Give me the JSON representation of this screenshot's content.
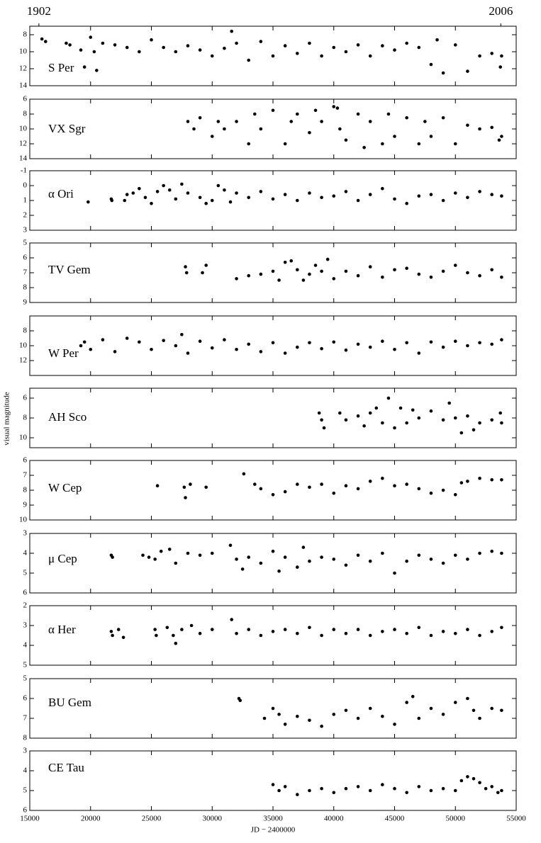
{
  "chart_data": {
    "type": "scatter",
    "xlabel": "JD − 2400000",
    "ylabel": "visual magnitude",
    "color": "#000000",
    "xlim": [
      15000,
      55000
    ],
    "xticks": [
      15000,
      20000,
      25000,
      30000,
      35000,
      40000,
      45000,
      50000,
      55000
    ],
    "top_ticks": [
      {
        "value": 15751,
        "label": "1902"
      },
      {
        "value": 53736,
        "label": "2006"
      }
    ],
    "panels": [
      {
        "name": "S Per",
        "ylim": [
          14,
          7
        ],
        "yticks": [
          8,
          10,
          12,
          14
        ],
        "x": [
          16000,
          16300,
          18000,
          18300,
          19200,
          19500,
          20000,
          20300,
          20500,
          21000,
          22000,
          23000,
          24000,
          25000,
          26000,
          27000,
          28000,
          29000,
          30000,
          31000,
          31600,
          32000,
          33000,
          34000,
          35000,
          36000,
          37000,
          38000,
          39000,
          40000,
          41000,
          42000,
          43000,
          44000,
          45000,
          46000,
          47000,
          48000,
          48500,
          49000,
          50000,
          51000,
          52000,
          53000,
          53700,
          53800
        ],
        "y": [
          8.5,
          8.8,
          9,
          9.2,
          9.8,
          11.8,
          8.3,
          10,
          12.2,
          9,
          9.2,
          9.5,
          10,
          8.6,
          9.5,
          10,
          9.3,
          9.8,
          10.5,
          9.6,
          7.6,
          9,
          11,
          8.8,
          10.5,
          9.3,
          10.2,
          9,
          10.5,
          9.5,
          10,
          9.2,
          10.5,
          9.3,
          9.8,
          9,
          9.5,
          11.5,
          8.6,
          12.5,
          9.2,
          12.3,
          10.5,
          10.2,
          11.8,
          10.5
        ]
      },
      {
        "name": "VX Sgr",
        "ylim": [
          14,
          6
        ],
        "yticks": [
          6,
          8,
          10,
          12,
          14
        ],
        "x": [
          28000,
          28500,
          29000,
          30000,
          30500,
          31000,
          32000,
          33000,
          33500,
          34000,
          35000,
          36000,
          36500,
          37000,
          38000,
          38500,
          39000,
          40000,
          40300,
          40500,
          41000,
          42000,
          42500,
          43000,
          44000,
          44500,
          45000,
          46000,
          47000,
          47500,
          48000,
          49000,
          50000,
          51000,
          52000,
          53000,
          53600,
          53800
        ],
        "y": [
          9,
          10,
          8.5,
          11,
          9,
          10,
          9,
          12,
          8,
          10,
          7.5,
          12,
          9,
          8,
          10.5,
          7.5,
          9,
          7,
          7.2,
          10,
          11.5,
          8,
          12.5,
          9,
          12,
          8,
          11,
          8.5,
          12,
          9,
          11,
          8.5,
          12,
          9.5,
          10,
          9.8,
          11.5,
          11
        ]
      },
      {
        "name": "α Ori",
        "ylim": [
          3,
          -1
        ],
        "yticks": [
          -1,
          0,
          1,
          2,
          3
        ],
        "x": [
          19800,
          21700,
          21750,
          22800,
          23000,
          23500,
          24000,
          24500,
          25000,
          25500,
          26000,
          26500,
          27000,
          27500,
          28000,
          29000,
          29500,
          30000,
          30500,
          31000,
          31500,
          32000,
          33000,
          34000,
          35000,
          36000,
          37000,
          38000,
          39000,
          40000,
          41000,
          42000,
          43000,
          44000,
          45000,
          46000,
          47000,
          48000,
          49000,
          50000,
          51000,
          52000,
          53000,
          53800
        ],
        "y": [
          1.1,
          0.9,
          1,
          1,
          0.6,
          0.5,
          0.2,
          0.8,
          1.2,
          0.4,
          0,
          0.3,
          0.9,
          -0.1,
          0.5,
          0.8,
          1.2,
          1,
          0,
          0.3,
          1.1,
          0.5,
          0.8,
          0.4,
          0.9,
          0.6,
          1,
          0.5,
          0.8,
          0.7,
          0.4,
          1,
          0.6,
          0.2,
          0.9,
          1.2,
          0.7,
          0.6,
          1,
          0.5,
          0.8,
          0.4,
          0.6,
          0.7
        ]
      },
      {
        "name": "TV Gem",
        "ylim": [
          9,
          5
        ],
        "yticks": [
          5,
          6,
          7,
          8,
          9
        ],
        "x": [
          27800,
          27900,
          29200,
          29500,
          32000,
          33000,
          34000,
          35000,
          35500,
          36000,
          36500,
          37000,
          37500,
          38000,
          38500,
          39000,
          39500,
          40000,
          41000,
          42000,
          43000,
          44000,
          45000,
          46000,
          47000,
          48000,
          49000,
          50000,
          51000,
          52000,
          53000,
          53800
        ],
        "y": [
          6.6,
          7,
          7,
          6.5,
          7.4,
          7.2,
          7.1,
          6.9,
          7.5,
          6.3,
          6.2,
          6.8,
          7.5,
          7.1,
          6.5,
          6.9,
          6.1,
          7.4,
          6.9,
          7.2,
          6.6,
          7.3,
          6.8,
          6.7,
          7.1,
          7.3,
          6.9,
          6.5,
          7,
          7.2,
          6.8,
          7.3
        ]
      },
      {
        "name": "W Per",
        "ylim": [
          14,
          6
        ],
        "yticks": [
          8,
          10,
          12
        ],
        "x": [
          19200,
          19500,
          20000,
          21000,
          22000,
          23000,
          24000,
          25000,
          26000,
          27000,
          27500,
          28000,
          29000,
          30000,
          31000,
          32000,
          33000,
          34000,
          35000,
          36000,
          37000,
          38000,
          39000,
          40000,
          41000,
          42000,
          43000,
          44000,
          45000,
          46000,
          47000,
          48000,
          49000,
          50000,
          51000,
          52000,
          53000,
          53800
        ],
        "y": [
          10,
          9.5,
          10.5,
          9.2,
          10.8,
          9,
          9.5,
          10.5,
          9.3,
          10,
          8.5,
          11,
          9.4,
          10.3,
          9.2,
          10.5,
          9.8,
          10.8,
          9.6,
          11,
          10.2,
          9.6,
          10.4,
          9.5,
          10.6,
          9.8,
          10.2,
          9.4,
          10.5,
          9.6,
          11,
          9.5,
          10.2,
          9.4,
          10,
          9.6,
          9.8,
          9.2
        ]
      },
      {
        "name": "AH Sco",
        "ylim": [
          11,
          5
        ],
        "yticks": [
          6,
          8,
          10
        ],
        "x": [
          38800,
          39000,
          39200,
          40500,
          41000,
          42000,
          42500,
          43000,
          43500,
          44000,
          44500,
          45000,
          45500,
          46000,
          46500,
          47000,
          48000,
          49000,
          49500,
          50000,
          50500,
          51000,
          51500,
          52000,
          53000,
          53700,
          53800
        ],
        "y": [
          7.5,
          8.2,
          9,
          7.5,
          8.2,
          7.8,
          8.8,
          7.5,
          7,
          8.5,
          6,
          9,
          7,
          8.5,
          7.2,
          8,
          7.3,
          8.2,
          6.5,
          8,
          9.5,
          7.8,
          9.2,
          8.5,
          8.2,
          7.5,
          8.5
        ]
      },
      {
        "name": "W Cep",
        "ylim": [
          10,
          6
        ],
        "yticks": [
          6,
          7,
          8,
          9,
          10
        ],
        "x": [
          25500,
          27700,
          27800,
          28200,
          29500,
          32600,
          33500,
          34000,
          35000,
          36000,
          37000,
          38000,
          39000,
          40000,
          41000,
          42000,
          43000,
          44000,
          45000,
          46000,
          47000,
          48000,
          49000,
          50000,
          50500,
          51000,
          52000,
          53000,
          53800
        ],
        "y": [
          7.7,
          7.8,
          8.5,
          7.6,
          7.8,
          6.9,
          7.6,
          7.9,
          8.3,
          8.1,
          7.6,
          7.8,
          7.6,
          8.2,
          7.7,
          7.9,
          7.4,
          7.2,
          7.7,
          7.6,
          7.9,
          8.2,
          8,
          8.3,
          7.5,
          7.4,
          7.2,
          7.3,
          7.3
        ]
      },
      {
        "name": "μ Cep",
        "ylim": [
          6,
          3
        ],
        "yticks": [
          3,
          4,
          5,
          6
        ],
        "x": [
          21700,
          21800,
          24300,
          24800,
          25300,
          25800,
          26500,
          27000,
          28000,
          29000,
          30000,
          31500,
          32000,
          32500,
          33000,
          34000,
          35000,
          35500,
          36000,
          37000,
          37500,
          38000,
          39000,
          40000,
          41000,
          42000,
          43000,
          44000,
          45000,
          46000,
          47000,
          48000,
          49000,
          50000,
          51000,
          52000,
          53000,
          53800
        ],
        "y": [
          4.1,
          4.2,
          4.1,
          4.2,
          4.3,
          3.9,
          3.8,
          4.5,
          4,
          4.1,
          4,
          3.6,
          4.3,
          4.8,
          4.2,
          4.5,
          3.9,
          4.9,
          4.2,
          4.7,
          3.7,
          4.4,
          4.2,
          4.3,
          4.6,
          4.1,
          4.4,
          4,
          5,
          4.4,
          4.1,
          4.3,
          4.5,
          4.1,
          4.3,
          4,
          3.9,
          4
        ]
      },
      {
        "name": "α Her",
        "ylim": [
          5,
          2
        ],
        "yticks": [
          2,
          3,
          4,
          5
        ],
        "x": [
          21700,
          21800,
          22300,
          22700,
          25300,
          25400,
          26300,
          26800,
          27000,
          27500,
          28300,
          29000,
          30000,
          31600,
          32000,
          33000,
          34000,
          35000,
          36000,
          37000,
          38000,
          39000,
          40000,
          41000,
          42000,
          43000,
          44000,
          45000,
          46000,
          47000,
          48000,
          49000,
          50000,
          51000,
          52000,
          53000,
          53800
        ],
        "y": [
          3.3,
          3.5,
          3.2,
          3.6,
          3.2,
          3.5,
          3.1,
          3.5,
          3.9,
          3.2,
          3,
          3.4,
          3.2,
          2.7,
          3.4,
          3.2,
          3.5,
          3.3,
          3.2,
          3.4,
          3.1,
          3.5,
          3.2,
          3.4,
          3.2,
          3.5,
          3.3,
          3.2,
          3.4,
          3.1,
          3.5,
          3.3,
          3.4,
          3.2,
          3.5,
          3.3,
          3.1
        ]
      },
      {
        "name": "BU Gem",
        "ylim": [
          8,
          5
        ],
        "yticks": [
          5,
          6,
          7,
          8
        ],
        "x": [
          32200,
          32300,
          34300,
          35000,
          35500,
          36000,
          37000,
          38000,
          39000,
          40000,
          41000,
          42000,
          43000,
          44000,
          45000,
          46000,
          46500,
          47000,
          48000,
          49000,
          50000,
          51000,
          51500,
          52000,
          53000,
          53800
        ],
        "y": [
          6,
          6.1,
          7,
          6.5,
          6.8,
          7.3,
          6.9,
          7.1,
          7.4,
          6.8,
          6.6,
          7,
          6.5,
          6.9,
          7.3,
          6.2,
          5.9,
          7,
          6.5,
          6.8,
          6.2,
          6,
          6.6,
          7,
          6.5,
          6.6
        ]
      },
      {
        "name": "CE Tau",
        "ylim": [
          6,
          3
        ],
        "yticks": [
          3,
          4,
          5,
          6
        ],
        "x": [
          35000,
          35500,
          36000,
          37000,
          38000,
          39000,
          40000,
          41000,
          42000,
          43000,
          44000,
          45000,
          46000,
          47000,
          48000,
          49000,
          50000,
          50500,
          51000,
          51500,
          52000,
          52500,
          53000,
          53500,
          53800
        ],
        "y": [
          4.7,
          5,
          4.8,
          5.2,
          5,
          4.9,
          5.1,
          4.9,
          4.8,
          5,
          4.7,
          4.9,
          5.1,
          4.8,
          5,
          4.9,
          5,
          4.5,
          4.3,
          4.4,
          4.6,
          4.9,
          4.8,
          5.1,
          5
        ]
      }
    ]
  }
}
